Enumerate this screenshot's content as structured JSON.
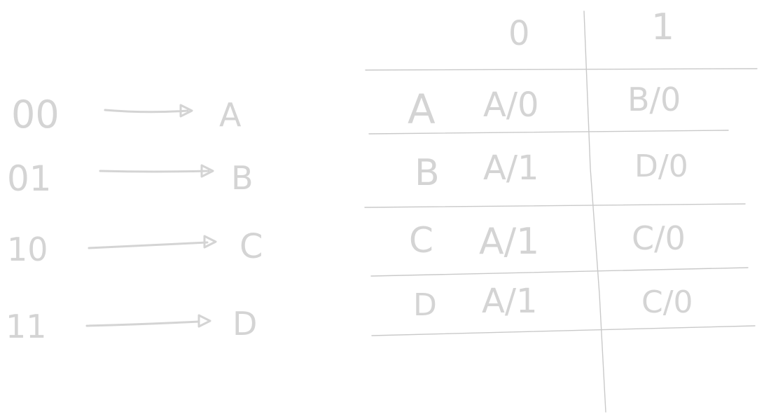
{
  "colors": {
    "ink": "#d4d4d4",
    "rule": "#c9c9c9",
    "background": "#ffffff"
  },
  "encoding": [
    {
      "code": "00",
      "state": "A"
    },
    {
      "code": "01",
      "state": "B"
    },
    {
      "code": "10",
      "state": "C"
    },
    {
      "code": "11",
      "state": "D"
    }
  ],
  "table": {
    "columns": [
      "0",
      "1"
    ],
    "rows": [
      {
        "state": "A",
        "on_0": "A/0",
        "on_1": "B/0"
      },
      {
        "state": "B",
        "on_0": "A/1",
        "on_1": "D/0"
      },
      {
        "state": "C",
        "on_0": "A/1",
        "on_1": "C/0"
      },
      {
        "state": "D",
        "on_0": "A/1",
        "on_1": "C/0"
      }
    ]
  }
}
